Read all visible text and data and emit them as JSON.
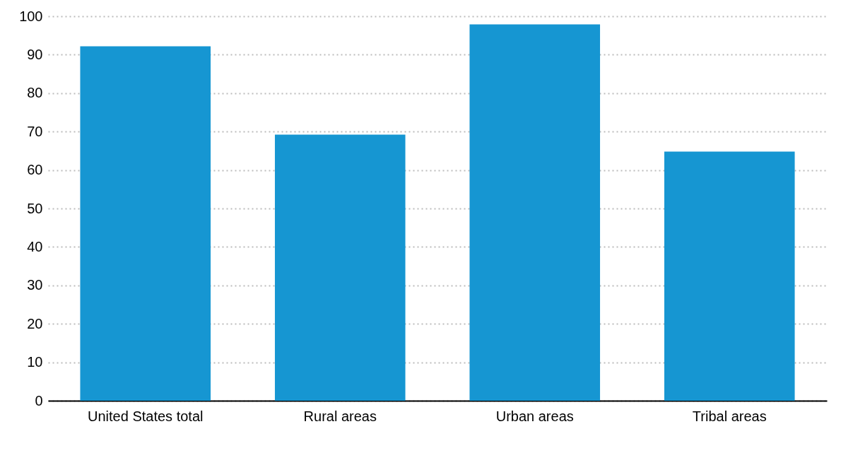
{
  "chart_data": {
    "type": "bar",
    "categories": [
      "United States total",
      "Rural areas",
      "Urban areas",
      "Tribal areas"
    ],
    "values": [
      92.2,
      69.2,
      97.9,
      64.8
    ],
    "color": "#1696d2",
    "ylim": [
      0,
      100
    ],
    "yticks": [
      0,
      10,
      20,
      30,
      40,
      50,
      60,
      70,
      80,
      90,
      100
    ],
    "grid": "y"
  }
}
